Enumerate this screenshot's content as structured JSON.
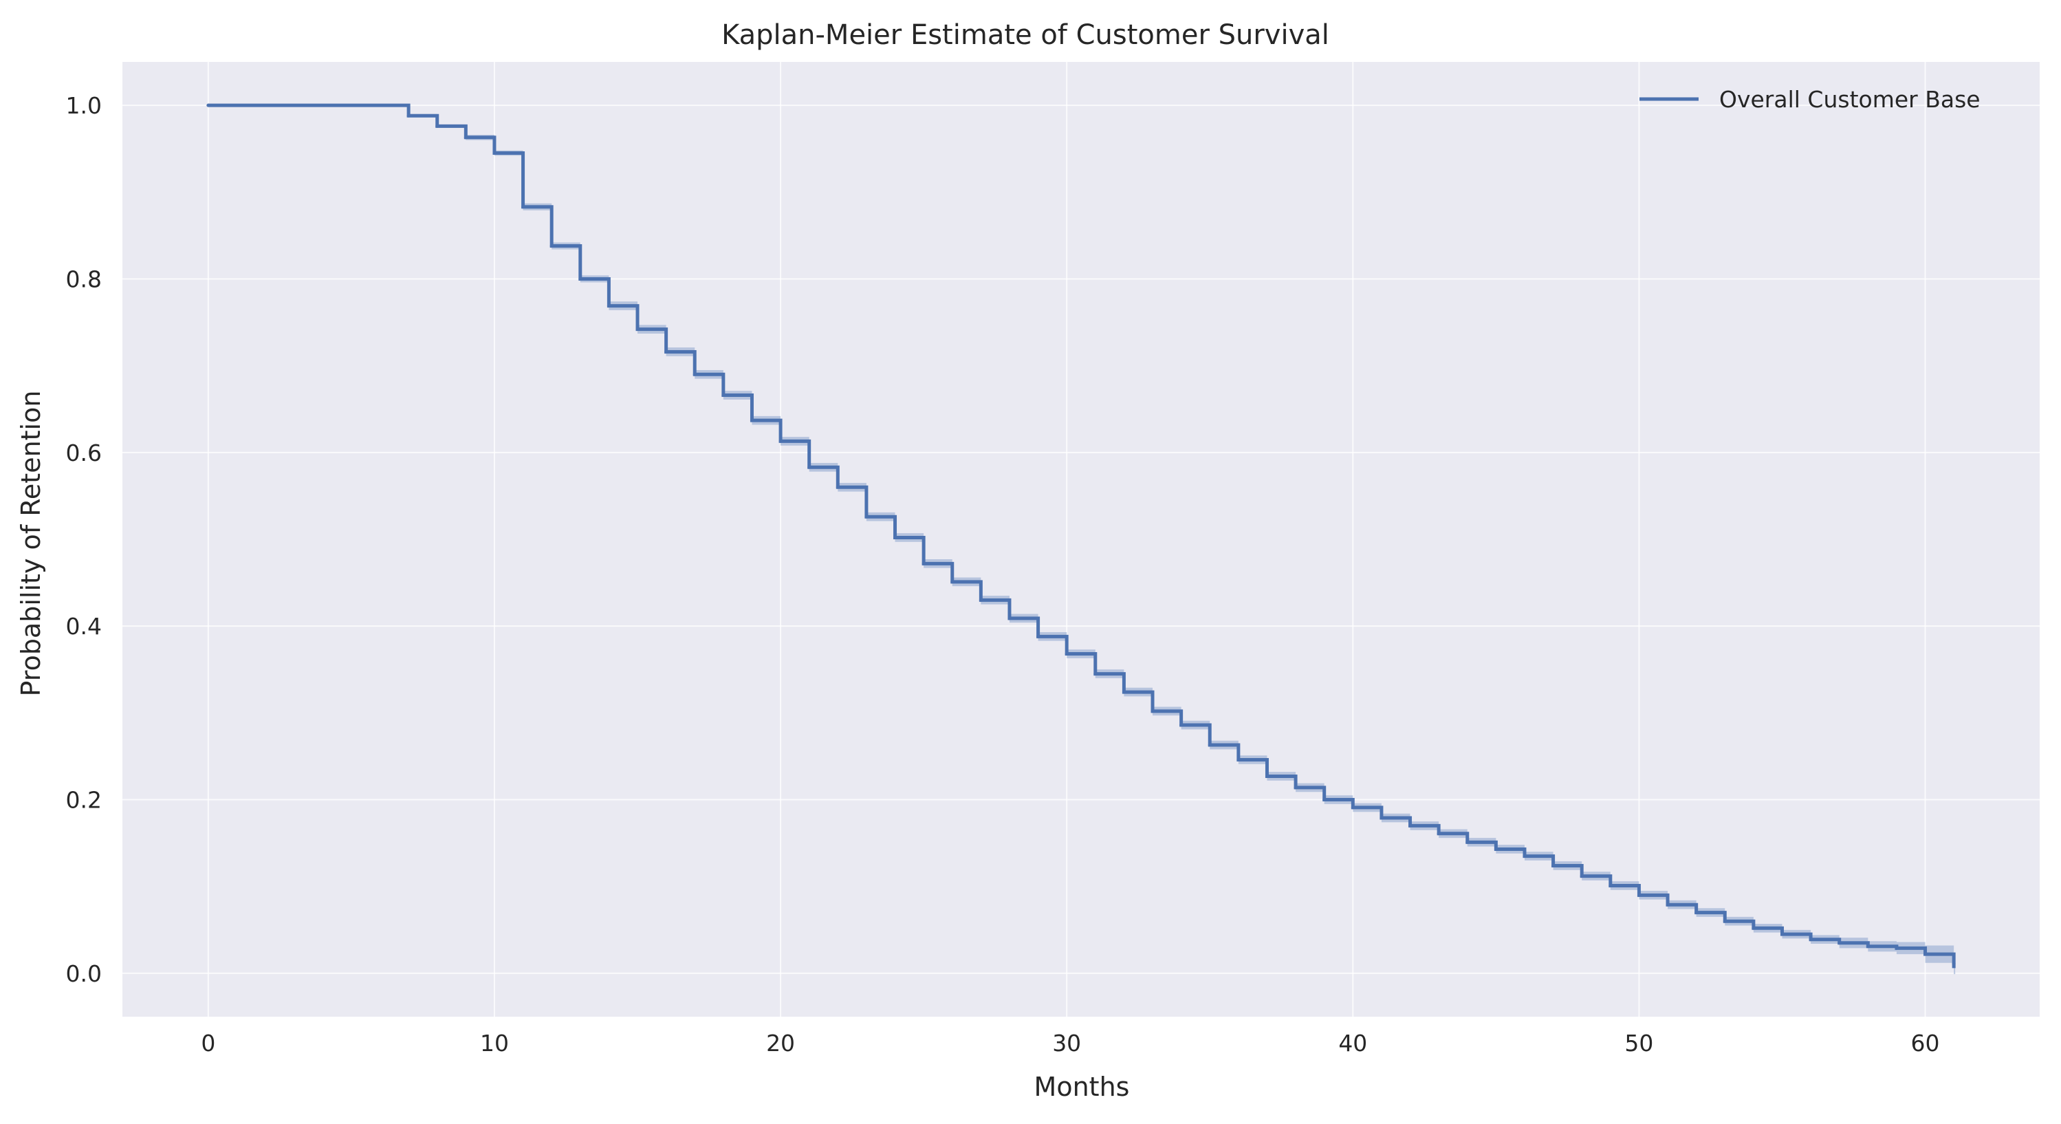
{
  "chart_data": {
    "type": "line",
    "step": true,
    "title": "Kaplan-Meier Estimate of Customer Survival",
    "xlabel": "Months",
    "ylabel": "Probability of Retention",
    "xlim": [
      -3,
      64
    ],
    "ylim": [
      -0.05,
      1.05
    ],
    "xticks": [
      0,
      10,
      20,
      30,
      40,
      50,
      60
    ],
    "yticks": [
      0.0,
      0.2,
      0.4,
      0.6,
      0.8,
      1.0
    ],
    "xtick_labels": [
      "0",
      "10",
      "20",
      "30",
      "40",
      "50",
      "60"
    ],
    "ytick_labels": [
      "0.0",
      "0.2",
      "0.4",
      "0.6",
      "0.8",
      "1.0"
    ],
    "grid": true,
    "legend_position": "top-right",
    "background": "#eaeaf2",
    "series": [
      {
        "name": "Overall Customer Base",
        "color": "#4c72b0",
        "ci_color": "#a1b4d6",
        "x": [
          0,
          7,
          8,
          9,
          10,
          11,
          12,
          13,
          14,
          15,
          16,
          17,
          18,
          19,
          20,
          21,
          22,
          23,
          24,
          25,
          26,
          27,
          28,
          29,
          30,
          31,
          32,
          33,
          34,
          35,
          36,
          37,
          38,
          39,
          40,
          41,
          42,
          43,
          44,
          45,
          46,
          47,
          48,
          49,
          50,
          51,
          52,
          53,
          54,
          55,
          56,
          57,
          58,
          59,
          60,
          61
        ],
        "y": [
          1.0,
          0.988,
          0.976,
          0.963,
          0.945,
          0.883,
          0.838,
          0.8,
          0.769,
          0.742,
          0.716,
          0.69,
          0.666,
          0.637,
          0.613,
          0.583,
          0.56,
          0.526,
          0.502,
          0.472,
          0.451,
          0.43,
          0.409,
          0.388,
          0.368,
          0.345,
          0.324,
          0.302,
          0.286,
          0.263,
          0.246,
          0.227,
          0.214,
          0.2,
          0.191,
          0.179,
          0.17,
          0.161,
          0.151,
          0.143,
          0.135,
          0.124,
          0.112,
          0.101,
          0.09,
          0.079,
          0.07,
          0.06,
          0.052,
          0.045,
          0.039,
          0.035,
          0.031,
          0.029,
          0.022,
          0.011
        ],
        "ci_halfwidth": [
          0.0,
          0.002,
          0.002,
          0.003,
          0.003,
          0.004,
          0.004,
          0.004,
          0.005,
          0.005,
          0.005,
          0.005,
          0.005,
          0.005,
          0.005,
          0.005,
          0.005,
          0.005,
          0.005,
          0.005,
          0.005,
          0.005,
          0.005,
          0.005,
          0.005,
          0.005,
          0.005,
          0.005,
          0.005,
          0.005,
          0.005,
          0.005,
          0.005,
          0.005,
          0.005,
          0.005,
          0.005,
          0.005,
          0.005,
          0.005,
          0.005,
          0.005,
          0.005,
          0.005,
          0.005,
          0.005,
          0.005,
          0.005,
          0.005,
          0.005,
          0.005,
          0.006,
          0.006,
          0.007,
          0.01,
          0.012
        ]
      }
    ]
  }
}
